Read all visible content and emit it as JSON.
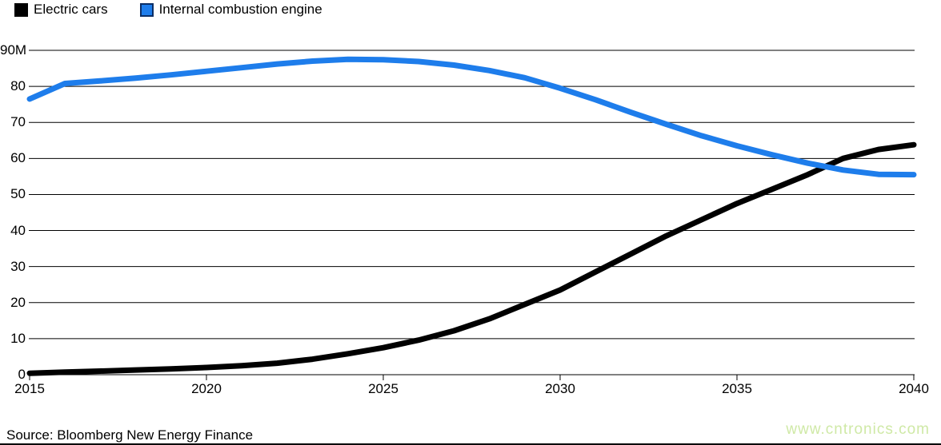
{
  "legend": {
    "items": [
      {
        "label": "Electric cars",
        "color": "#000000"
      },
      {
        "label": "Internal combustion engine",
        "color": "#1e7deb"
      }
    ]
  },
  "chart_data": {
    "type": "line",
    "x": [
      2015,
      2016,
      2017,
      2018,
      2019,
      2020,
      2021,
      2022,
      2023,
      2024,
      2025,
      2026,
      2027,
      2028,
      2029,
      2030,
      2031,
      2032,
      2033,
      2034,
      2035,
      2036,
      2037,
      2038,
      2039,
      2040
    ],
    "series": [
      {
        "name": "Electric cars",
        "color": "#000000",
        "values": [
          0.4,
          0.7,
          1.0,
          1.3,
          1.6,
          2.0,
          2.5,
          3.2,
          4.3,
          5.8,
          7.5,
          9.6,
          12.2,
          15.5,
          19.5,
          23.5,
          28.5,
          33.5,
          38.5,
          43.0,
          47.5,
          51.5,
          55.5,
          60.0,
          62.5,
          63.8
        ]
      },
      {
        "name": "Internal combustion engine",
        "color": "#1e7deb",
        "values": [
          76.5,
          80.8,
          81.5,
          82.3,
          83.2,
          84.2,
          85.2,
          86.2,
          87.0,
          87.5,
          87.4,
          86.9,
          85.9,
          84.4,
          82.4,
          79.5,
          76.3,
          72.8,
          69.5,
          66.3,
          63.5,
          61.0,
          58.7,
          56.8,
          55.6,
          55.5
        ]
      }
    ],
    "title": "",
    "xlabel": "",
    "ylabel": "",
    "xlim": [
      2015,
      2040
    ],
    "ylim": [
      0,
      90
    ],
    "grid": "horizontal",
    "legend_position": "top-left",
    "y_ticks": [
      90,
      80,
      70,
      60,
      50,
      40,
      30,
      20,
      10,
      0
    ],
    "y_tick_labels": [
      "90M",
      "80",
      "70",
      "60",
      "50",
      "40",
      "30",
      "20",
      "10",
      "0"
    ],
    "x_ticks": [
      2015,
      2020,
      2025,
      2030,
      2035,
      2040
    ],
    "x_tick_labels": [
      "2015",
      "2020",
      "2025",
      "2030",
      "2035",
      "2040"
    ]
  },
  "source": {
    "text": "Source: Bloomberg New Energy Finance"
  },
  "watermark": {
    "text": "www.cntronics.com",
    "color": "#cfe9a6"
  }
}
